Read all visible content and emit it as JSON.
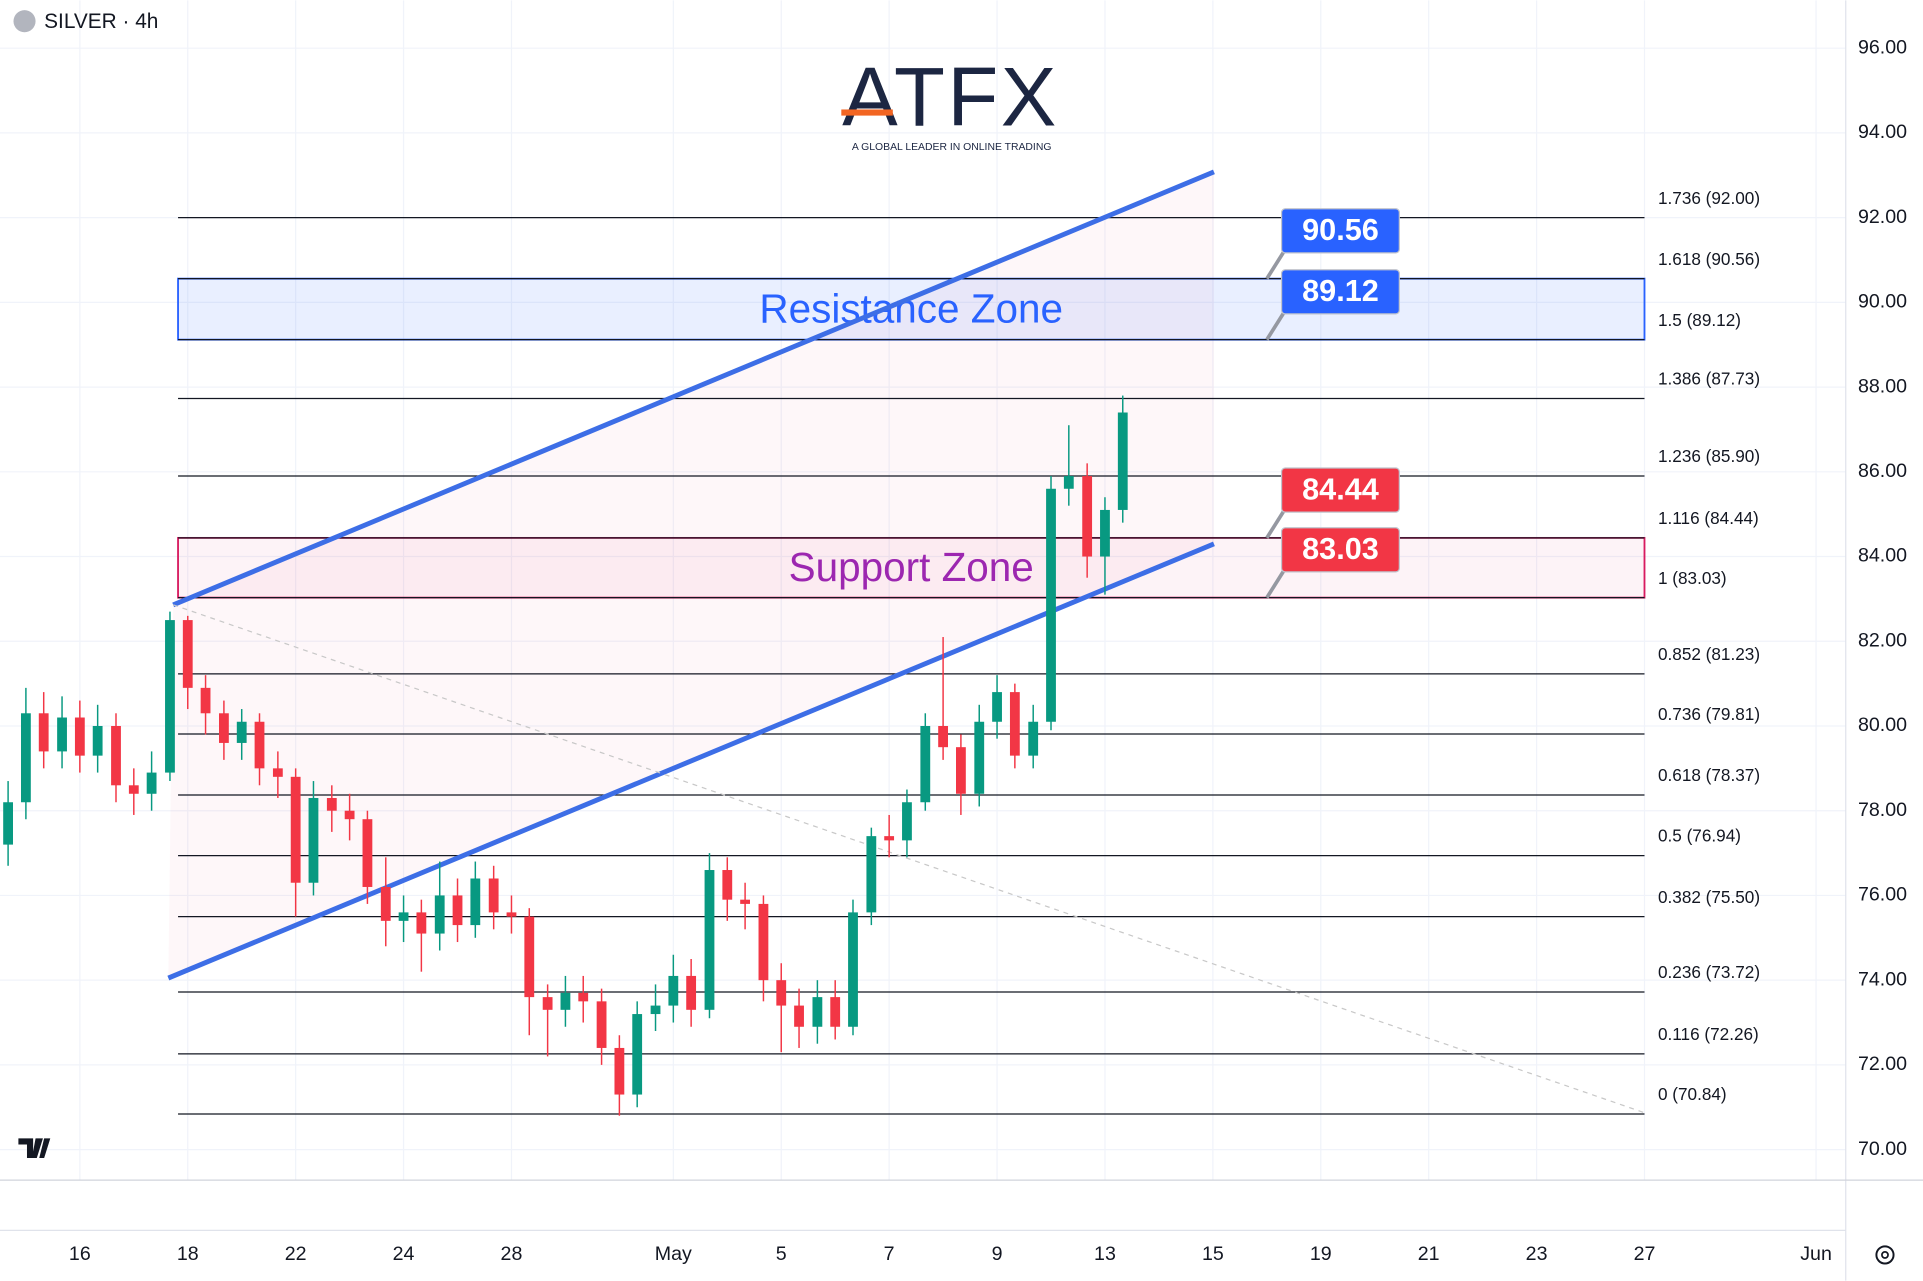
{
  "chart_data": {
    "type": "candlestick",
    "title": "SILVER · 4h",
    "logo": "ATFX",
    "logo_tagline": "A GLOBAL LEADER IN ONLINE TRADING",
    "up_color": "#089981",
    "down_color": "#f23645",
    "grid": true,
    "x": [
      -1.33,
      -1,
      -0.67,
      -0.33,
      0,
      0.33,
      0.67,
      1,
      1.33,
      1.67,
      2,
      2.33,
      2.67,
      3,
      3.33,
      3.67,
      4,
      4.33,
      4.67,
      5,
      5.33,
      5.67,
      6,
      6.33,
      6.67,
      7,
      7.33,
      7.67,
      8,
      8.33,
      8.67,
      9,
      9.33,
      9.67,
      10,
      10.33,
      10.67,
      11,
      11.33,
      11.67,
      12,
      12.33,
      12.67,
      13,
      13.33,
      13.67,
      14,
      14.33,
      14.67,
      15,
      15.33,
      15.67,
      16,
      16.33,
      16.67,
      17,
      17.33,
      17.67,
      18,
      18.33,
      18.67,
      19,
      19.33
    ],
    "open": [
      77.2,
      78.2,
      80.3,
      79.4,
      80.2,
      79.3,
      80.0,
      78.6,
      78.4,
      78.9,
      82.5,
      80.9,
      80.3,
      79.6,
      80.1,
      79.0,
      78.8,
      76.3,
      78.3,
      78.0,
      77.8,
      76.2,
      75.4,
      75.6,
      75.1,
      76.0,
      75.3,
      76.4,
      75.6,
      75.5,
      73.6,
      73.3,
      73.7,
      73.5,
      72.4,
      71.3,
      73.2,
      73.4,
      74.1,
      73.3,
      76.6,
      75.9,
      75.8,
      74.0,
      73.4,
      72.9,
      73.6,
      72.9,
      75.6,
      77.4,
      77.3,
      78.2,
      80.0,
      79.5,
      78.4,
      80.1,
      80.8,
      79.3,
      80.1,
      85.6,
      85.9,
      84.0,
      85.1
    ],
    "high": [
      78.7,
      80.9,
      80.8,
      80.7,
      80.6,
      80.5,
      80.3,
      79.0,
      79.4,
      82.7,
      82.6,
      81.2,
      80.6,
      80.4,
      80.3,
      79.4,
      79.0,
      78.7,
      78.6,
      78.4,
      78.0,
      76.9,
      76.0,
      75.9,
      76.8,
      76.4,
      76.8,
      76.7,
      76.0,
      75.7,
      73.9,
      74.1,
      74.1,
      73.8,
      72.7,
      73.5,
      73.9,
      74.6,
      74.5,
      77.0,
      76.9,
      76.3,
      76.0,
      74.4,
      73.8,
      74.0,
      74.0,
      75.9,
      77.6,
      77.9,
      78.5,
      80.3,
      82.1,
      79.8,
      80.5,
      81.2,
      81.0,
      80.5,
      85.9,
      87.1,
      86.2,
      85.4,
      87.8
    ],
    "low": [
      76.7,
      77.8,
      79.0,
      79.0,
      78.9,
      78.9,
      78.2,
      77.9,
      78.0,
      78.7,
      80.4,
      79.8,
      79.2,
      79.2,
      78.6,
      78.3,
      75.5,
      76.0,
      77.5,
      77.3,
      75.8,
      74.8,
      74.9,
      74.2,
      74.7,
      74.9,
      75.0,
      75.2,
      75.1,
      72.7,
      72.2,
      72.9,
      73.0,
      72.0,
      70.8,
      71.0,
      72.8,
      73.0,
      72.9,
      73.1,
      75.4,
      75.2,
      73.5,
      72.3,
      72.4,
      72.5,
      72.6,
      72.7,
      75.3,
      76.9,
      76.9,
      78.0,
      79.2,
      77.9,
      78.1,
      79.7,
      79.0,
      79.0,
      79.9,
      85.2,
      83.5,
      83.1,
      84.8
    ],
    "close": [
      78.2,
      80.3,
      79.4,
      80.2,
      79.3,
      80.0,
      78.6,
      78.4,
      78.9,
      82.5,
      80.9,
      80.3,
      79.6,
      80.1,
      79.0,
      78.8,
      76.3,
      78.3,
      78.0,
      77.8,
      76.2,
      75.4,
      75.6,
      75.1,
      76.0,
      75.3,
      76.4,
      75.6,
      75.5,
      73.6,
      73.3,
      73.7,
      73.5,
      72.4,
      71.3,
      73.2,
      73.4,
      74.1,
      73.3,
      76.6,
      75.9,
      75.8,
      74.0,
      73.4,
      72.9,
      73.6,
      72.9,
      75.6,
      77.4,
      77.3,
      78.2,
      80.0,
      79.5,
      78.4,
      80.1,
      80.8,
      79.3,
      80.1,
      85.6,
      85.9,
      84.0,
      85.1,
      87.4
    ],
    "xlim": [
      -1.48,
      32.73
    ],
    "ylim": [
      69.28,
      97.13
    ],
    "xticks": [
      {
        "value": 0,
        "label": "16"
      },
      {
        "value": 2,
        "label": "18"
      },
      {
        "value": 4,
        "label": "22"
      },
      {
        "value": 6,
        "label": "24"
      },
      {
        "value": 8,
        "label": "28"
      },
      {
        "value": 11,
        "label": "May"
      },
      {
        "value": 13,
        "label": "5"
      },
      {
        "value": 15,
        "label": "7"
      },
      {
        "value": 17,
        "label": "9"
      },
      {
        "value": 19,
        "label": "13"
      },
      {
        "value": 21,
        "label": "15"
      },
      {
        "value": 23,
        "label": "19"
      },
      {
        "value": 25,
        "label": "21"
      },
      {
        "value": 27,
        "label": "23"
      },
      {
        "value": 29,
        "label": "27"
      },
      {
        "value": 32.18,
        "label": "Jun"
      }
    ],
    "yticks": [
      {
        "value": 70,
        "label": "70.00"
      },
      {
        "value": 72,
        "label": "72.00"
      },
      {
        "value": 74,
        "label": "74.00"
      },
      {
        "value": 76,
        "label": "76.00"
      },
      {
        "value": 78,
        "label": "78.00"
      },
      {
        "value": 80,
        "label": "80.00"
      },
      {
        "value": 82,
        "label": "82.00"
      },
      {
        "value": 84,
        "label": "84.00"
      },
      {
        "value": 86,
        "label": "86.00"
      },
      {
        "value": 88,
        "label": "88.00"
      },
      {
        "value": 90,
        "label": "90.00"
      },
      {
        "value": 92,
        "label": "92.00"
      },
      {
        "value": 94,
        "label": "94.00"
      },
      {
        "value": 96,
        "label": "96.00"
      }
    ],
    "fib_range_x": [
      1.82,
      29
    ],
    "fib_levels": [
      {
        "value": 92.0,
        "label": "1.736 (92.00)"
      },
      {
        "value": 90.56,
        "label": "1.618 (90.56)"
      },
      {
        "value": 89.12,
        "label": "1.5 (89.12)"
      },
      {
        "value": 87.73,
        "label": "1.386 (87.73)"
      },
      {
        "value": 85.9,
        "label": "1.236 (85.90)"
      },
      {
        "value": 84.44,
        "label": "1.116 (84.44)"
      },
      {
        "value": 83.03,
        "label": "1 (83.03)"
      },
      {
        "value": 81.23,
        "label": "0.852 (81.23)"
      },
      {
        "value": 79.81,
        "label": "0.736 (79.81)"
      },
      {
        "value": 78.37,
        "label": "0.618 (78.37)"
      },
      {
        "value": 76.94,
        "label": "0.5 (76.94)"
      },
      {
        "value": 75.5,
        "label": "0.382 (75.50)"
      },
      {
        "value": 73.72,
        "label": "0.236 (73.72)"
      },
      {
        "value": 72.26,
        "label": "0.116 (72.26)"
      },
      {
        "value": 70.84,
        "label": "0 (70.84)"
      }
    ],
    "zones": [
      {
        "label": "Resistance Zone",
        "low": 89.12,
        "high": 90.56,
        "color": "#2962ff",
        "text_color": "#2962ff"
      },
      {
        "label": "Support Zone",
        "low": 83.03,
        "high": 84.44,
        "color": "#d81b60",
        "text_color": "#9c27b0"
      }
    ],
    "price_labels": [
      {
        "value": 90.56,
        "color": "#2962ff"
      },
      {
        "value": 89.12,
        "color": "#2962ff"
      },
      {
        "value": 84.44,
        "color": "#f23645"
      },
      {
        "value": 83.03,
        "color": "#f23645"
      }
    ],
    "lines": [
      {
        "x": [
          1.73,
          21.02
        ],
        "y": [
          82.86,
          93.08
        ],
        "color": "#3d6ee6",
        "style": "solid"
      },
      {
        "x": [
          1.64,
          21.02
        ],
        "y": [
          74.05,
          84.3
        ],
        "color": "#3d6ee6",
        "style": "solid"
      },
      {
        "x": [
          1.73,
          29
        ],
        "y": [
          82.86,
          70.87
        ],
        "color": "#c8c8c8",
        "style": "dotted"
      }
    ]
  }
}
